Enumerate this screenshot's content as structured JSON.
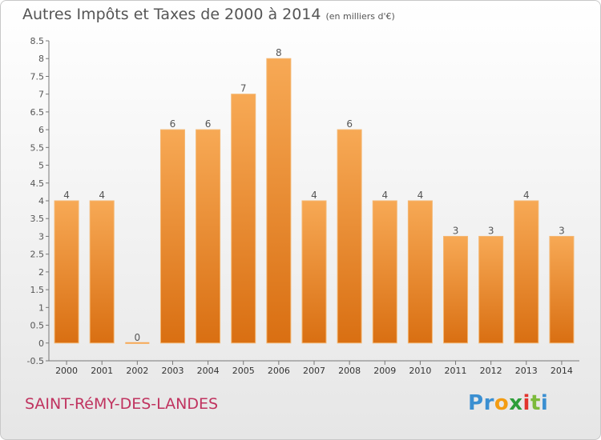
{
  "title": {
    "main": "Autres Impôts et Taxes de 2000 à 2014",
    "unit": "(en milliers d'€)"
  },
  "town": "SAINT-RéMY-DES-LANDES",
  "logo": {
    "letters": [
      "P",
      "r",
      "o",
      "x",
      "i",
      "t",
      "i"
    ],
    "colors": [
      "#3b8fd1",
      "#3b8fd1",
      "#f39c12",
      "#2e9e3a",
      "#e2342d",
      "#7cba3b",
      "#3b8fd1"
    ]
  },
  "colors": {
    "bar_top": "#f7a955",
    "bar_bottom": "#d96f12",
    "axis": "#777777",
    "grid": "#c8c8c8",
    "text": "#555555"
  },
  "chart_data": {
    "type": "bar",
    "categories": [
      "2000",
      "2001",
      "2002",
      "2003",
      "2004",
      "2005",
      "2006",
      "2007",
      "2008",
      "2009",
      "2010",
      "2011",
      "2012",
      "2013",
      "2014"
    ],
    "values": [
      4,
      4,
      0,
      6,
      6,
      7,
      8,
      4,
      6,
      4,
      4,
      3,
      3,
      4,
      3
    ],
    "data_labels": [
      "4",
      "4",
      "0",
      "6",
      "6",
      "7",
      "8",
      "4",
      "6",
      "4",
      "4",
      "3",
      "3",
      "4",
      "3"
    ],
    "y_ticks": [
      "-0.5",
      "0",
      "0.5",
      "1",
      "1.5",
      "2",
      "2.5",
      "3",
      "3.5",
      "4",
      "4.5",
      "5",
      "5.5",
      "6",
      "6.5",
      "7",
      "7.5",
      "8",
      "8.5"
    ],
    "ylim": [
      -0.5,
      8.5
    ],
    "grid": false,
    "title": "Autres Impôts et Taxes de 2000 à 2014",
    "xlabel": "",
    "ylabel": ""
  }
}
